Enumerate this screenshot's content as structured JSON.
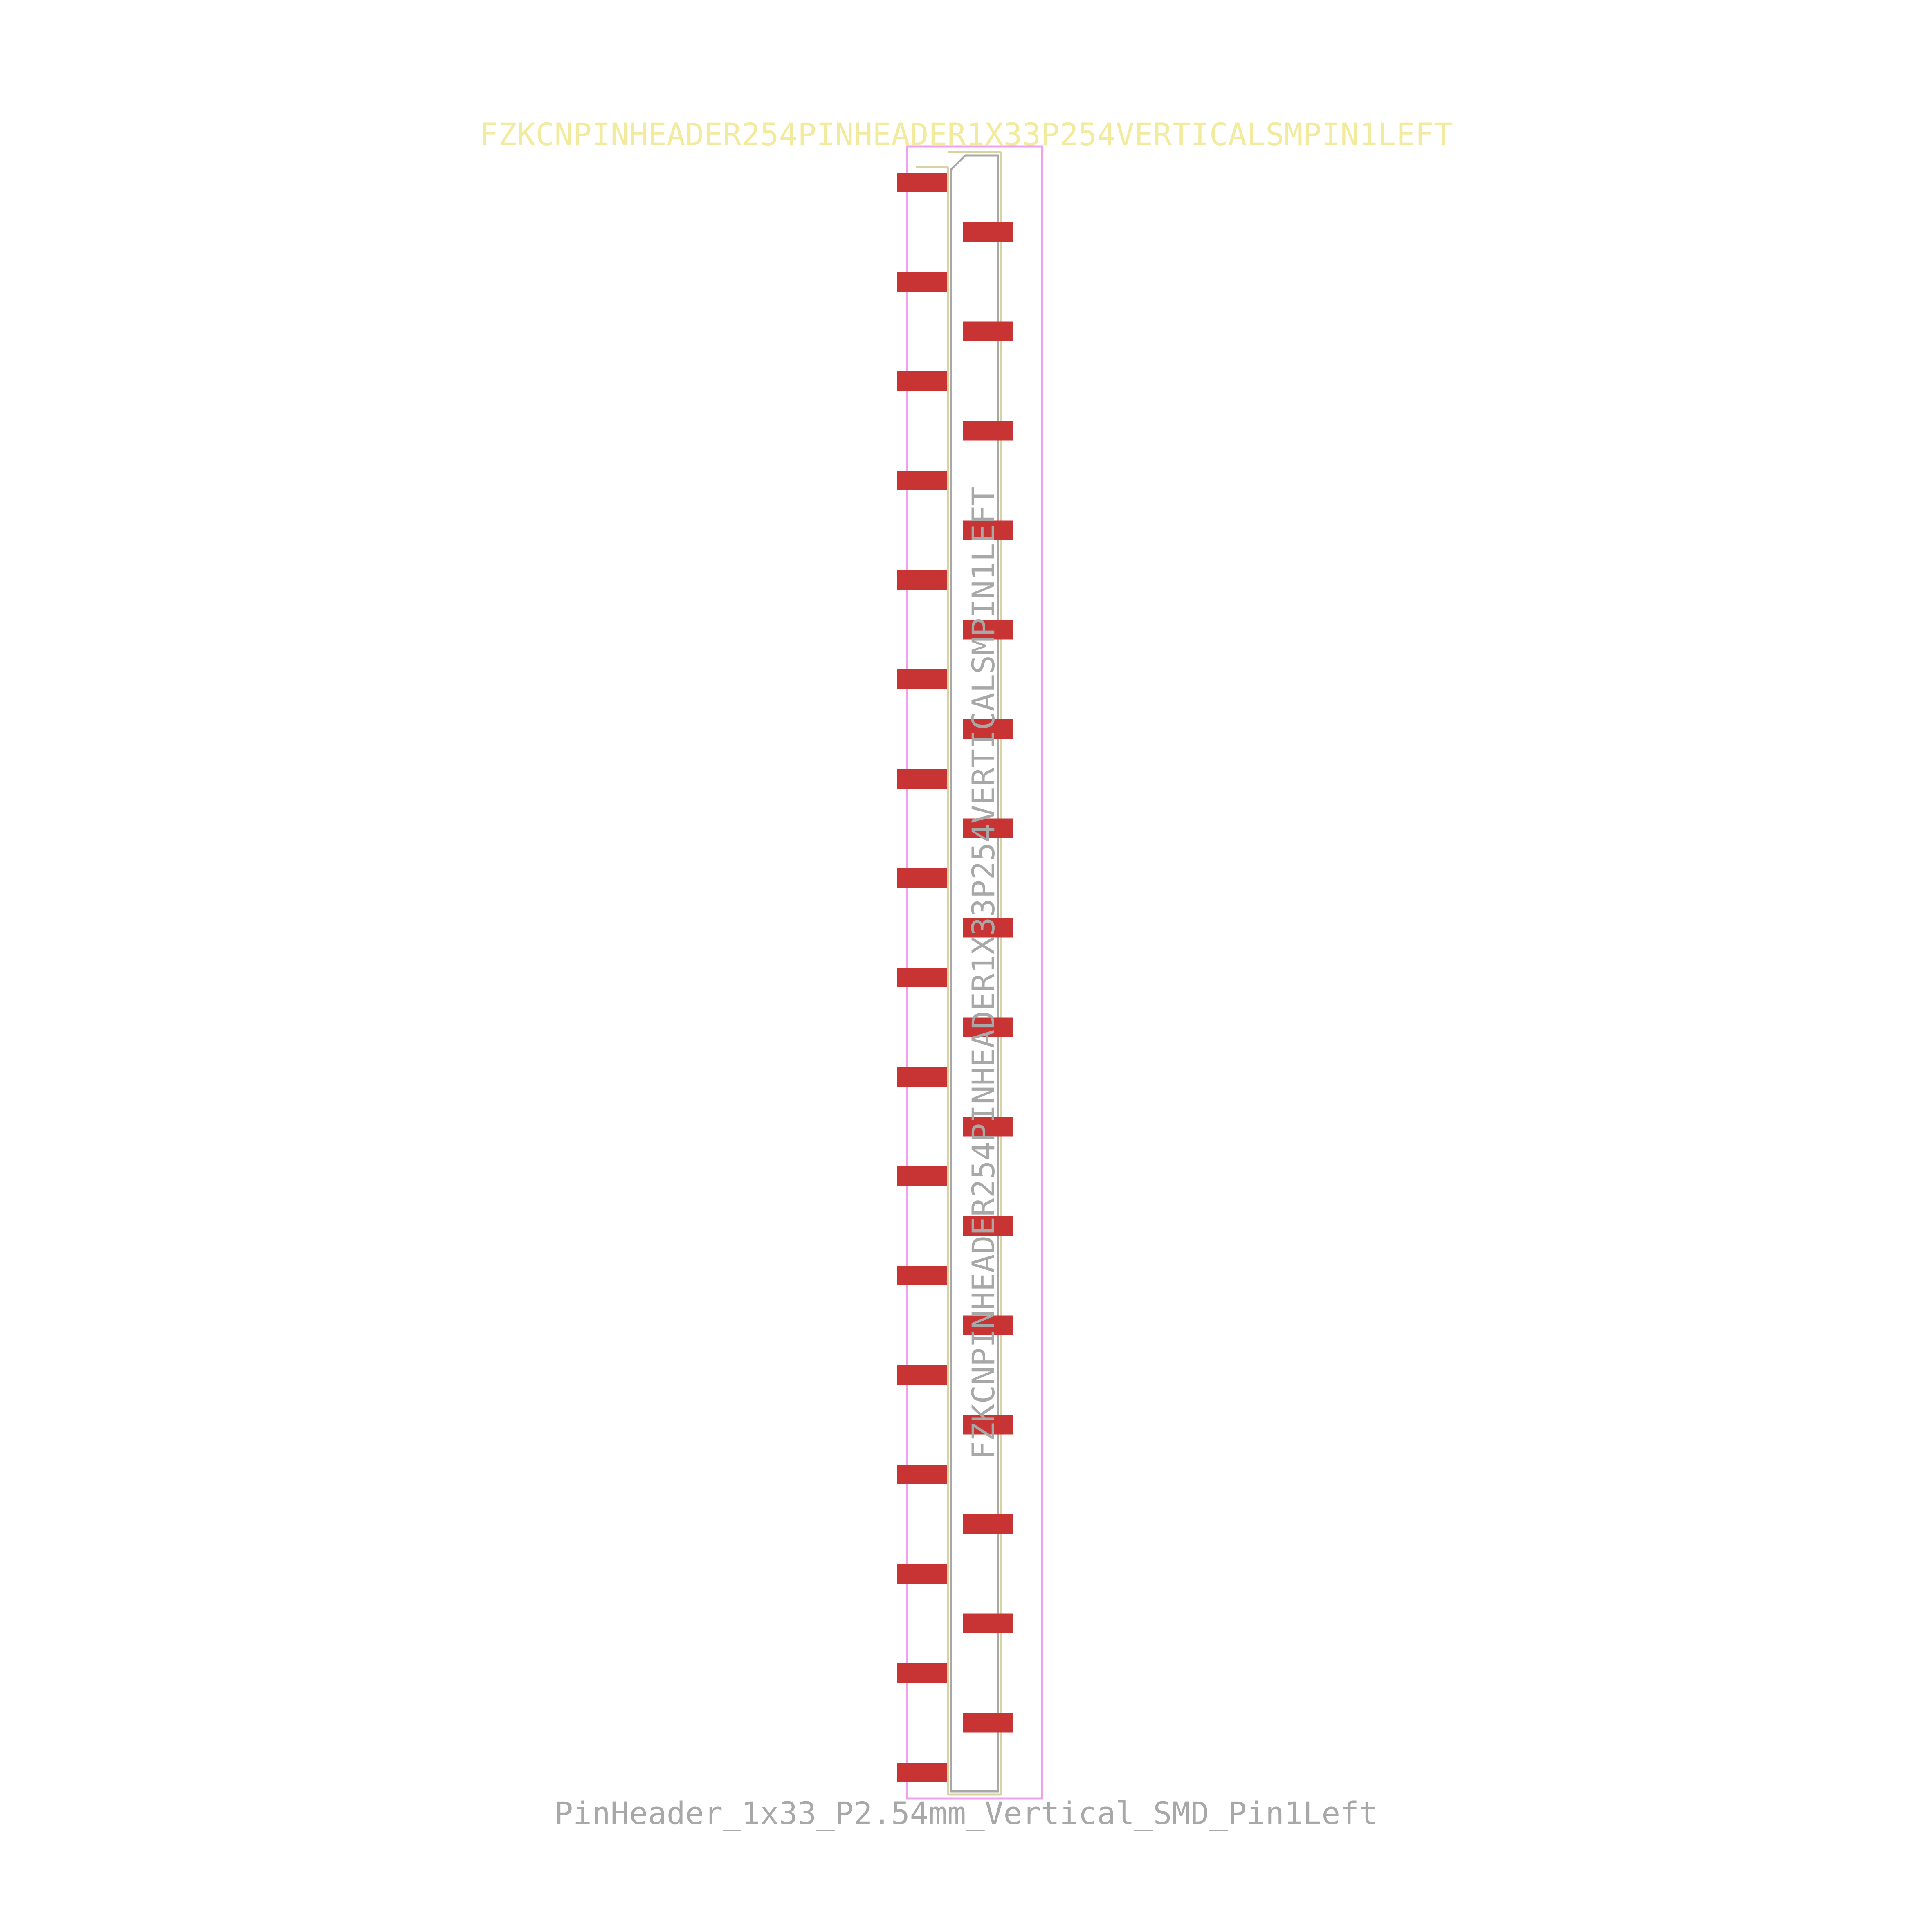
{
  "footprint": {
    "reference_text": "FZKCNPINHEADER254PINHEADER1X33P254VERTICALSMPIN1LEFT",
    "fab_text": "FZKCNPINHEADER254PINHEADER1X33P254VERTICALSMPIN1LEFT",
    "value_text": "PinHeader_1x33_P2.54mm_Vertical_SMD_Pin1Left",
    "pin_count": 33,
    "pin1_side": "left"
  },
  "colors": {
    "background": "#ffffff",
    "pad": "#c83434",
    "silkscreen": "#f2eb9e",
    "fab": "#a8a8a8",
    "courtyard": "#f0a0f0"
  }
}
